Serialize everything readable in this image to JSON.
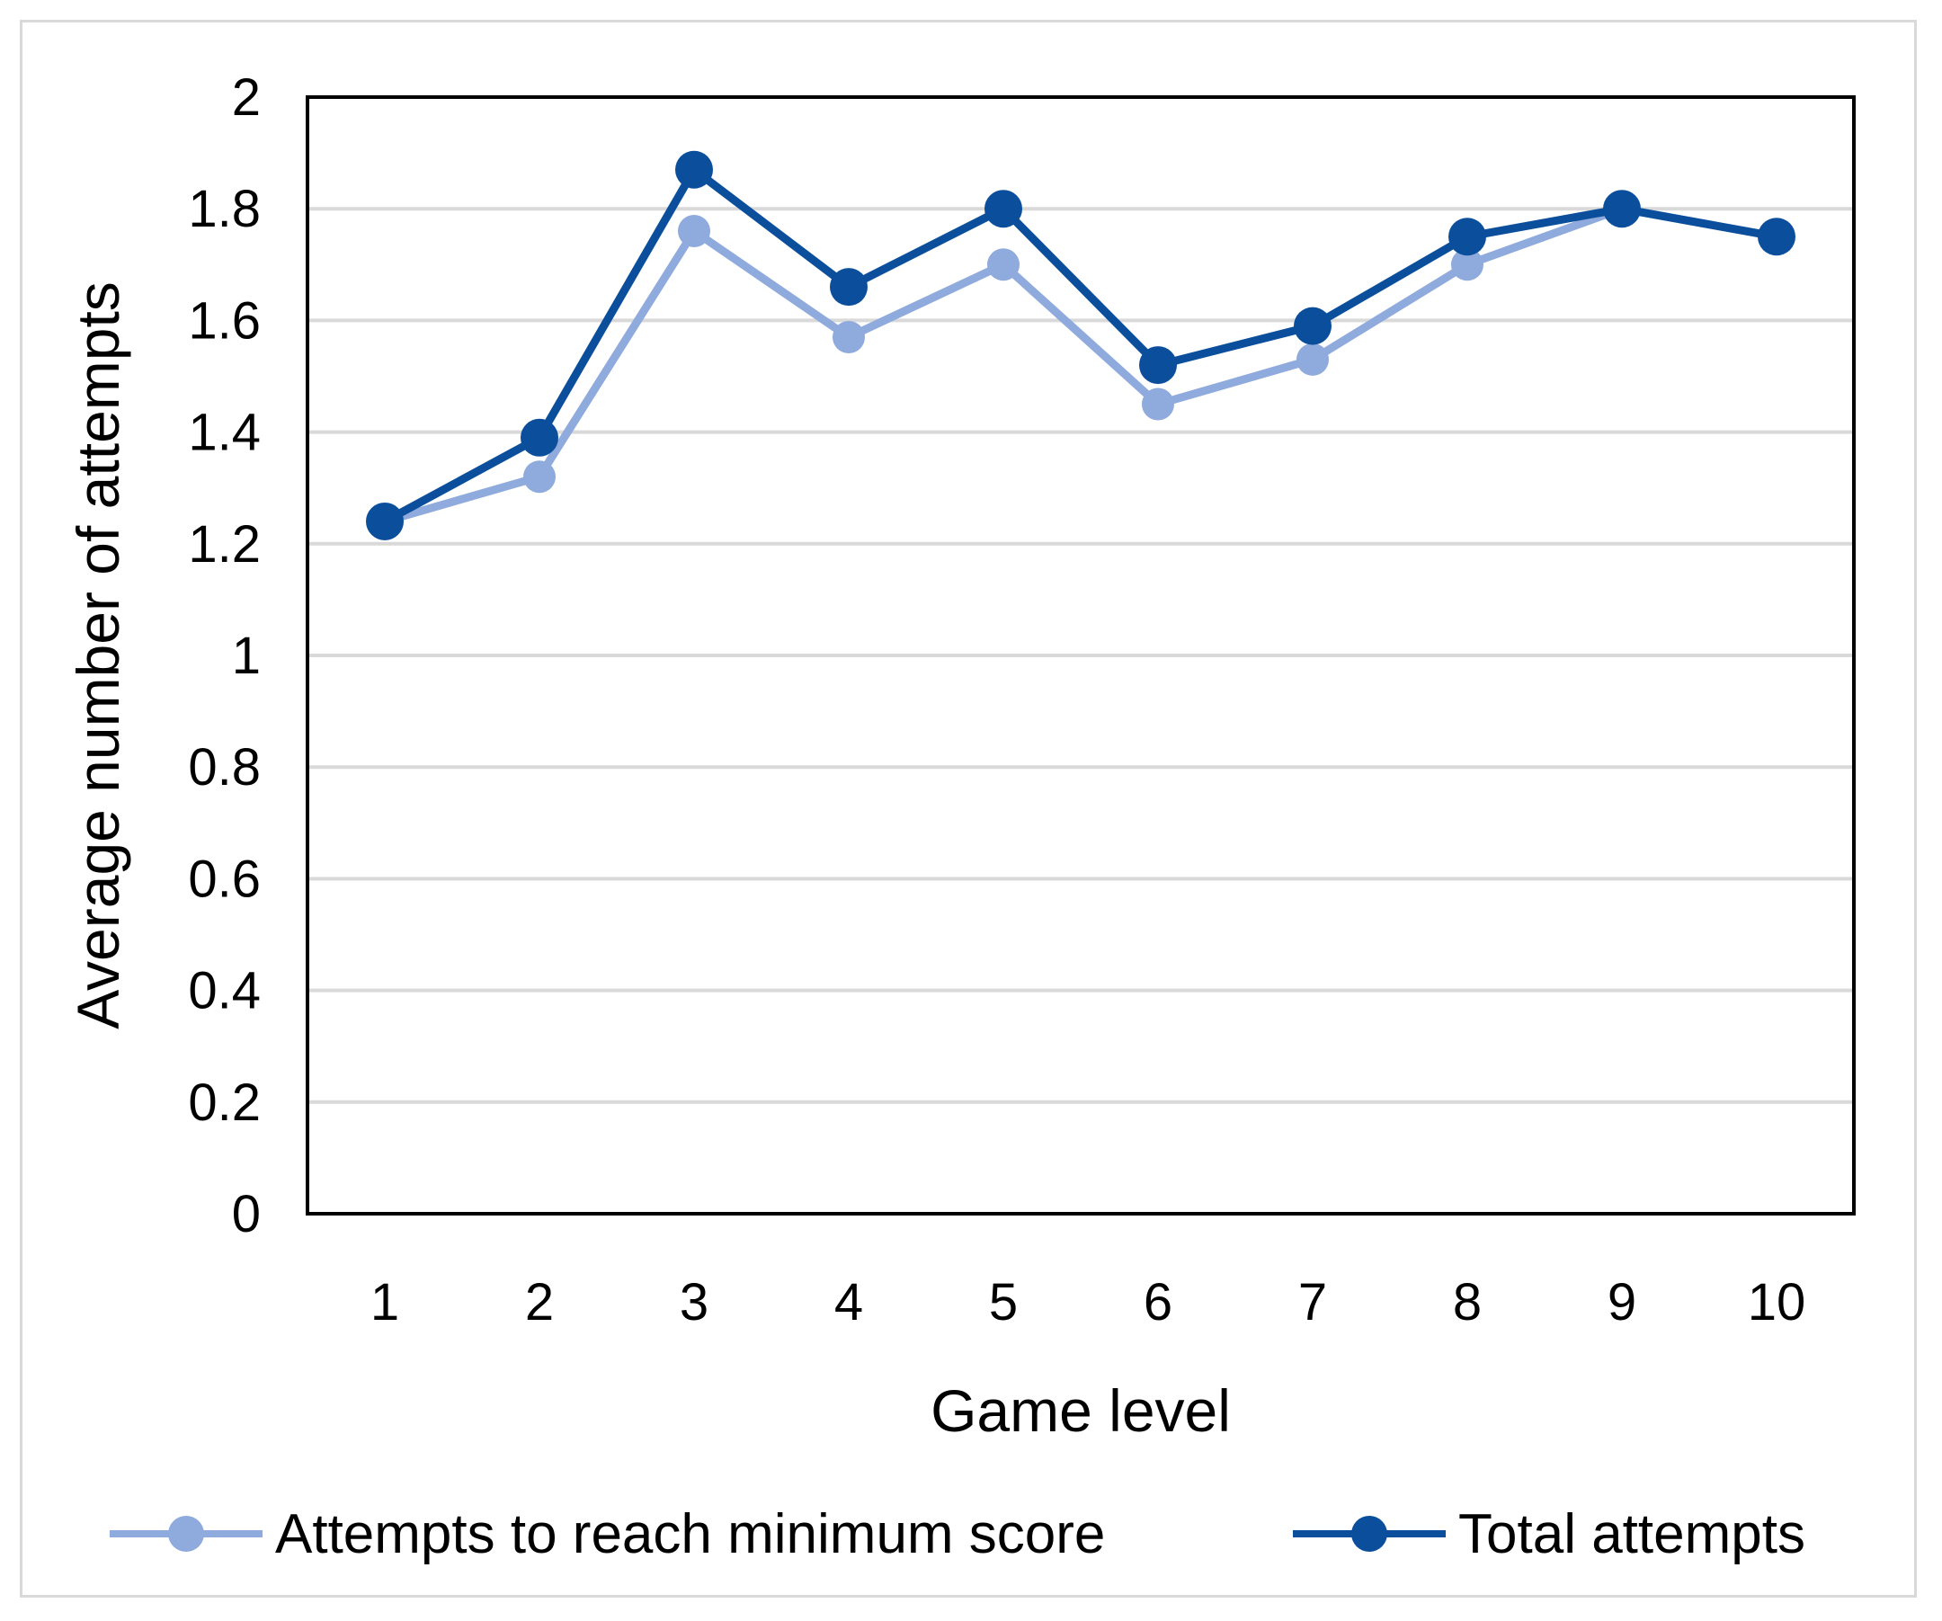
{
  "chart_data": {
    "type": "line",
    "title": "",
    "xlabel": "Game level",
    "ylabel": "Average number of attempts",
    "categories": [
      "1",
      "2",
      "3",
      "4",
      "5",
      "6",
      "7",
      "8",
      "9",
      "10"
    ],
    "ylim": [
      0,
      2
    ],
    "yticks": [
      "0",
      "0.2",
      "0.4",
      "0.6",
      "0.8",
      "1",
      "1.2",
      "1.4",
      "1.6",
      "1.8",
      "2"
    ],
    "grid": true,
    "legend_position": "bottom",
    "series": [
      {
        "name": "Attempts to reach minimum score",
        "color": "#8faadc",
        "values": [
          1.24,
          1.32,
          1.76,
          1.57,
          1.7,
          1.45,
          1.53,
          1.7,
          1.8,
          1.75
        ]
      },
      {
        "name": "Total attempts",
        "color": "#0b4f9c",
        "values": [
          1.24,
          1.39,
          1.87,
          1.66,
          1.8,
          1.52,
          1.59,
          1.75,
          1.8,
          1.75
        ]
      }
    ]
  }
}
